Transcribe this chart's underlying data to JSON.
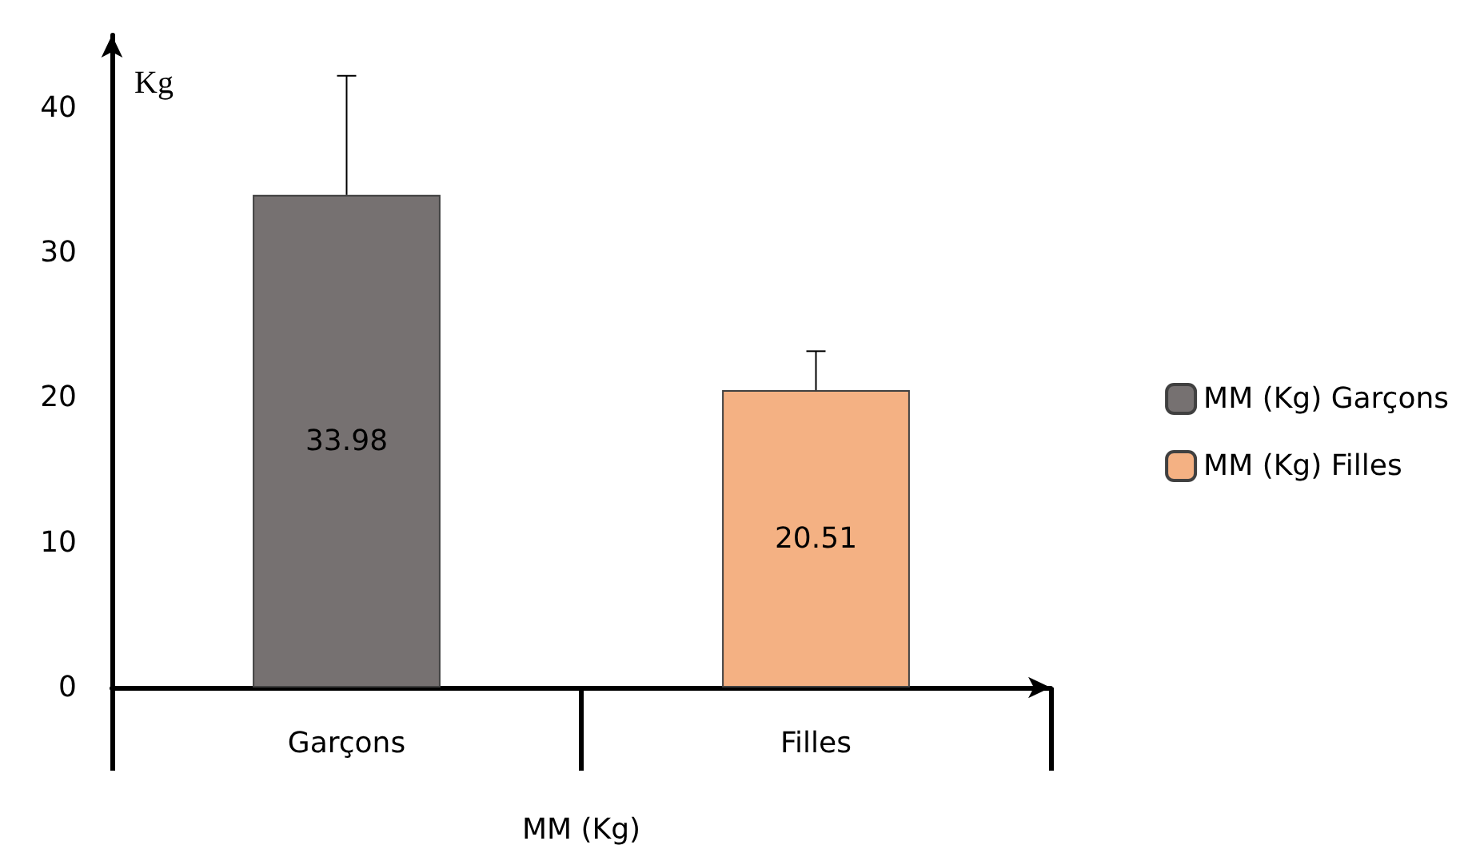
{
  "chart_data": {
    "type": "bar",
    "ylabel": "Kg",
    "xlabel": "MM (Kg)",
    "categories": [
      "Garçons",
      "Filles"
    ],
    "series": [
      {
        "name": "MM (Kg) Garçons",
        "color": "#767171",
        "values": [
          33.98,
          null
        ],
        "errors": [
          [
            33.98,
            42.2
          ],
          null
        ]
      },
      {
        "name": "MM (Kg) Filles",
        "color": "#f4b183",
        "values": [
          null,
          20.51
        ],
        "errors": [
          null,
          [
            20.51,
            23.2
          ]
        ]
      }
    ],
    "ylim": [
      0,
      45
    ],
    "yticks": [
      0,
      10,
      20,
      30,
      40
    ],
    "grid": false,
    "legend": "right",
    "data_labels": true
  }
}
